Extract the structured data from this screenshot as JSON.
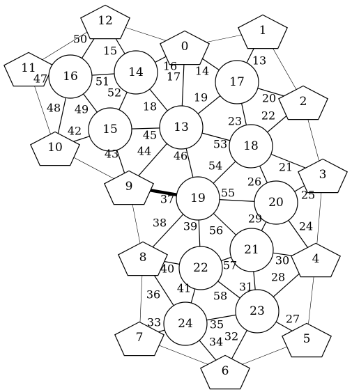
{
  "graph": {
    "nodes": [
      {
        "id": "0",
        "shape": "pentagon"
      },
      {
        "id": "1",
        "shape": "pentagon"
      },
      {
        "id": "2",
        "shape": "pentagon"
      },
      {
        "id": "3",
        "shape": "pentagon"
      },
      {
        "id": "4",
        "shape": "pentagon"
      },
      {
        "id": "5",
        "shape": "pentagon"
      },
      {
        "id": "6",
        "shape": "pentagon"
      },
      {
        "id": "7",
        "shape": "pentagon"
      },
      {
        "id": "8",
        "shape": "pentagon"
      },
      {
        "id": "9",
        "shape": "pentagon"
      },
      {
        "id": "10",
        "shape": "pentagon"
      },
      {
        "id": "11",
        "shape": "pentagon"
      },
      {
        "id": "12",
        "shape": "pentagon"
      },
      {
        "id": "13",
        "shape": "circle"
      },
      {
        "id": "14",
        "shape": "circle"
      },
      {
        "id": "15",
        "shape": "circle"
      },
      {
        "id": "16",
        "shape": "circle"
      },
      {
        "id": "17",
        "shape": "circle"
      },
      {
        "id": "18",
        "shape": "circle"
      },
      {
        "id": "19",
        "shape": "circle"
      },
      {
        "id": "20",
        "shape": "circle"
      },
      {
        "id": "21",
        "shape": "circle"
      },
      {
        "id": "22",
        "shape": "circle"
      },
      {
        "id": "23",
        "shape": "circle"
      },
      {
        "id": "24",
        "shape": "circle"
      }
    ],
    "edges": [
      {
        "from": "12",
        "to": "0",
        "label": "",
        "weight": "thin"
      },
      {
        "from": "0",
        "to": "1",
        "label": "",
        "weight": "thin"
      },
      {
        "from": "1",
        "to": "2",
        "label": "",
        "weight": "thin"
      },
      {
        "from": "2",
        "to": "3",
        "label": "",
        "weight": "thin"
      },
      {
        "from": "3",
        "to": "4",
        "label": "",
        "weight": "thin"
      },
      {
        "from": "4",
        "to": "5",
        "label": "",
        "weight": "thin"
      },
      {
        "from": "5",
        "to": "6",
        "label": "",
        "weight": "thin"
      },
      {
        "from": "6",
        "to": "7",
        "label": "",
        "weight": "thin"
      },
      {
        "from": "7",
        "to": "8",
        "label": "",
        "weight": "thin"
      },
      {
        "from": "8",
        "to": "9",
        "label": "",
        "weight": "thin"
      },
      {
        "from": "9",
        "to": "10",
        "label": "",
        "weight": "thin"
      },
      {
        "from": "10",
        "to": "11",
        "label": "",
        "weight": "thin"
      },
      {
        "from": "11",
        "to": "12",
        "label": "",
        "weight": "thin"
      },
      {
        "from": "1",
        "to": "17",
        "label": "13",
        "weight": "normal"
      },
      {
        "from": "0",
        "to": "17",
        "label": "14",
        "weight": "normal"
      },
      {
        "from": "12",
        "to": "14",
        "label": "15",
        "weight": "normal"
      },
      {
        "from": "0",
        "to": "14",
        "label": "16",
        "weight": "normal"
      },
      {
        "from": "0",
        "to": "13",
        "label": "17",
        "weight": "normal"
      },
      {
        "from": "14",
        "to": "13",
        "label": "18",
        "weight": "normal"
      },
      {
        "from": "17",
        "to": "13",
        "label": "19",
        "weight": "normal"
      },
      {
        "from": "17",
        "to": "2",
        "label": "20",
        "weight": "normal"
      },
      {
        "from": "18",
        "to": "3",
        "label": "21",
        "weight": "normal"
      },
      {
        "from": "2",
        "to": "18",
        "label": "22",
        "weight": "normal"
      },
      {
        "from": "17",
        "to": "18",
        "label": "23",
        "weight": "normal"
      },
      {
        "from": "20",
        "to": "4",
        "label": "24",
        "weight": "normal"
      },
      {
        "from": "3",
        "to": "20",
        "label": "25",
        "weight": "normal"
      },
      {
        "from": "18",
        "to": "20",
        "label": "26",
        "weight": "normal"
      },
      {
        "from": "23",
        "to": "5",
        "label": "27",
        "weight": "normal"
      },
      {
        "from": "4",
        "to": "23",
        "label": "28",
        "weight": "normal"
      },
      {
        "from": "20",
        "to": "21",
        "label": "29",
        "weight": "normal"
      },
      {
        "from": "21",
        "to": "4",
        "label": "30",
        "weight": "normal"
      },
      {
        "from": "21",
        "to": "23",
        "label": "31",
        "weight": "normal"
      },
      {
        "from": "23",
        "to": "6",
        "label": "32",
        "weight": "normal"
      },
      {
        "from": "24",
        "to": "7",
        "label": "33",
        "weight": "normal"
      },
      {
        "from": "24",
        "to": "6",
        "label": "34",
        "weight": "normal"
      },
      {
        "from": "24",
        "to": "23",
        "label": "35",
        "weight": "normal"
      },
      {
        "from": "8",
        "to": "24",
        "label": "36",
        "weight": "normal"
      },
      {
        "from": "9",
        "to": "19",
        "label": "37",
        "weight": "bold"
      },
      {
        "from": "19",
        "to": "8",
        "label": "38",
        "weight": "normal"
      },
      {
        "from": "19",
        "to": "22",
        "label": "39",
        "weight": "normal"
      },
      {
        "from": "8",
        "to": "22",
        "label": "40",
        "weight": "normal"
      },
      {
        "from": "22",
        "to": "24",
        "label": "41",
        "weight": "normal"
      },
      {
        "from": "10",
        "to": "15",
        "label": "42",
        "weight": "normal"
      },
      {
        "from": "15",
        "to": "9",
        "label": "43",
        "weight": "normal"
      },
      {
        "from": "13",
        "to": "9",
        "label": "44",
        "weight": "normal"
      },
      {
        "from": "15",
        "to": "13",
        "label": "45",
        "weight": "normal"
      },
      {
        "from": "13",
        "to": "19",
        "label": "46",
        "weight": "normal"
      },
      {
        "from": "11",
        "to": "16",
        "label": "47",
        "weight": "normal"
      },
      {
        "from": "16",
        "to": "10",
        "label": "48",
        "weight": "normal"
      },
      {
        "from": "16",
        "to": "15",
        "label": "49",
        "weight": "normal"
      },
      {
        "from": "12",
        "to": "16",
        "label": "50",
        "weight": "normal"
      },
      {
        "from": "16",
        "to": "14",
        "label": "51",
        "weight": "normal"
      },
      {
        "from": "14",
        "to": "15",
        "label": "52",
        "weight": "normal"
      },
      {
        "from": "13",
        "to": "18",
        "label": "53",
        "weight": "normal"
      },
      {
        "from": "18",
        "to": "19",
        "label": "54",
        "weight": "normal"
      },
      {
        "from": "19",
        "to": "20",
        "label": "55",
        "weight": "normal"
      },
      {
        "from": "19",
        "to": "21",
        "label": "56",
        "weight": "normal"
      },
      {
        "from": "22",
        "to": "21",
        "label": "57",
        "weight": "normal"
      },
      {
        "from": "22",
        "to": "23",
        "label": "58",
        "weight": "normal"
      }
    ]
  }
}
